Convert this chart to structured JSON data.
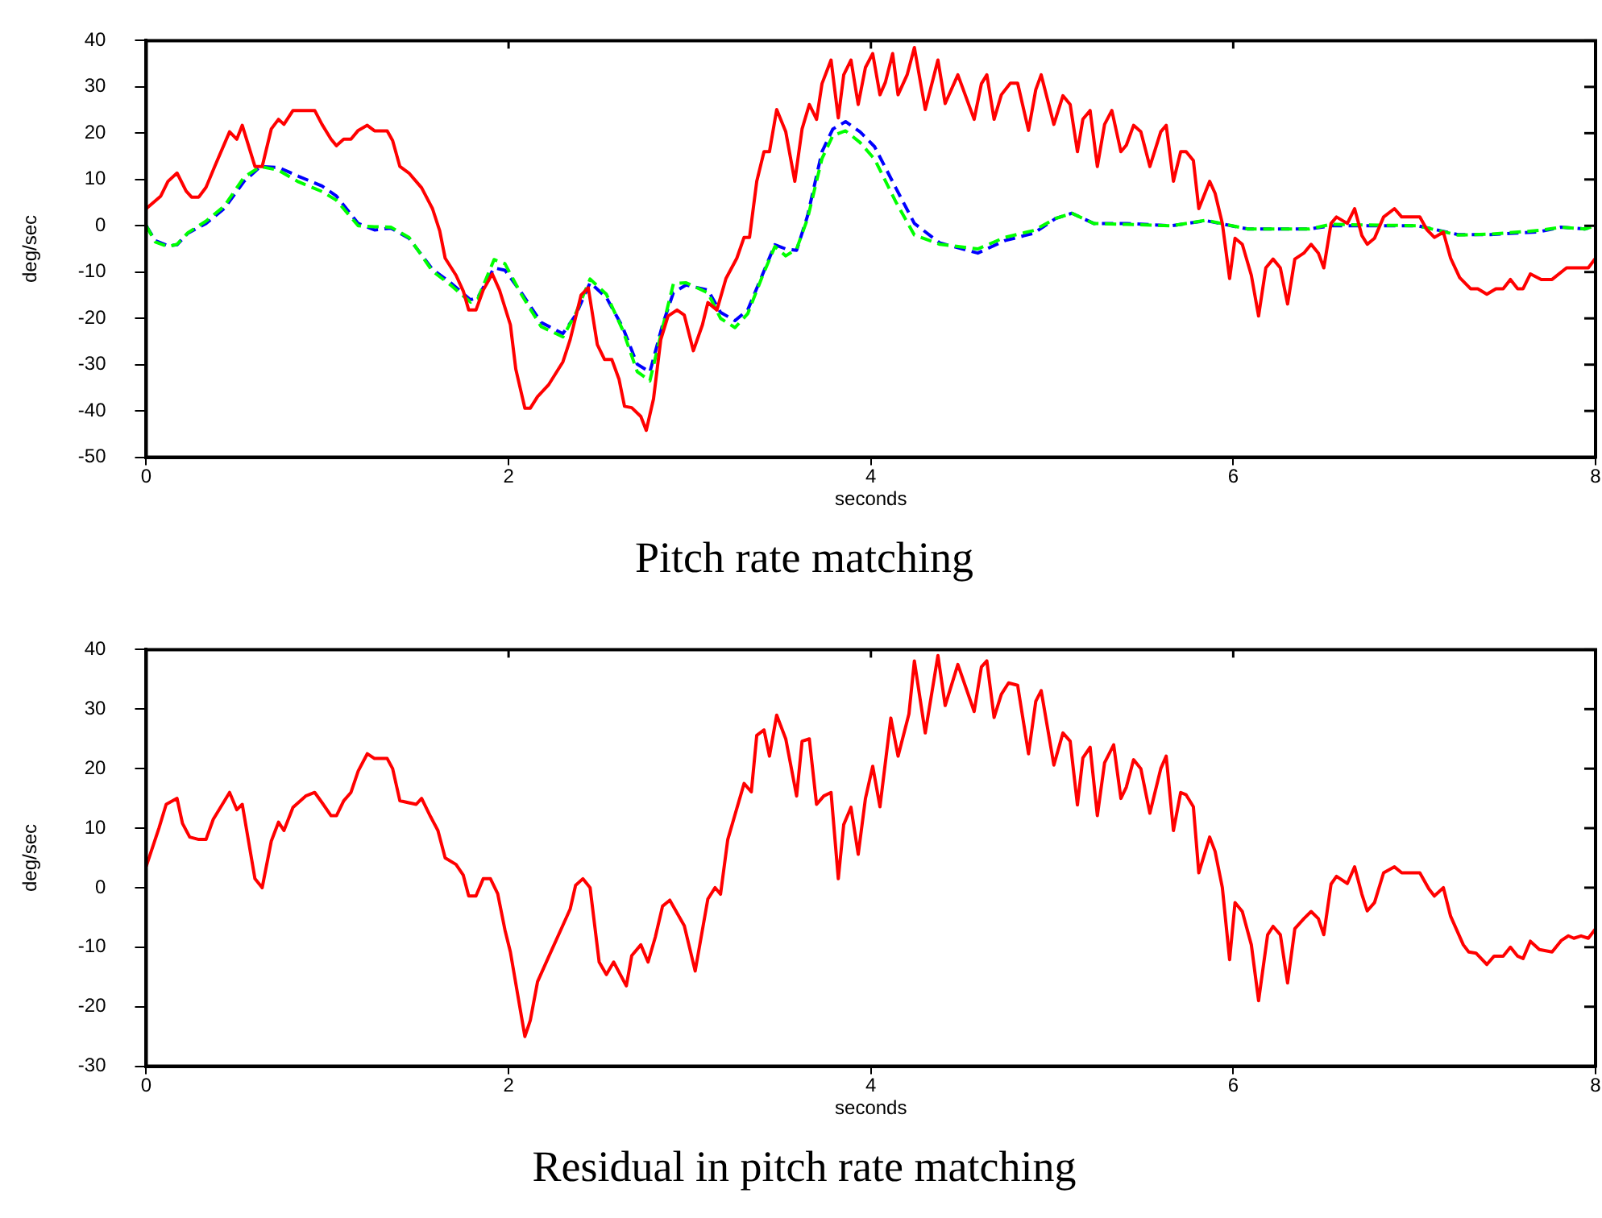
{
  "chart_data": [
    {
      "type": "line",
      "title": "Pitch rate matching",
      "xlabel": "seconds",
      "ylabel": "deg/sec",
      "xlim": [
        0,
        8
      ],
      "xticks": [
        0,
        2,
        4,
        6,
        8
      ],
      "ylim": [
        -50,
        40
      ],
      "yticks": [
        -50,
        -40,
        -30,
        -20,
        -10,
        0,
        10,
        20,
        30,
        40
      ],
      "grid": false,
      "legend": false,
      "marker": "none",
      "series": [
        {
          "color": "#ff0000",
          "line_style": "solid",
          "x": [
            0,
            0.08,
            0.12,
            0.17,
            0.22,
            0.25,
            0.29,
            0.33,
            0.38,
            0.46,
            0.5,
            0.53,
            0.6,
            0.64,
            0.69,
            0.73,
            0.76,
            0.81,
            0.93,
            0.97,
            1.02,
            1.05,
            1.09,
            1.13,
            1.17,
            1.22,
            1.26,
            1.33,
            1.36,
            1.4,
            1.45,
            1.52,
            1.58,
            1.62,
            1.65,
            1.71,
            1.75,
            1.78,
            1.82,
            1.86,
            1.91,
            1.95,
            2.01,
            2.04,
            2.09,
            2.12,
            2.16,
            2.22,
            2.3,
            2.34,
            2.4,
            2.44,
            2.49,
            2.53,
            2.57,
            2.61,
            2.64,
            2.68,
            2.73,
            2.76,
            2.8,
            2.84,
            2.88,
            2.93,
            2.97,
            3.02,
            3.07,
            3.1,
            3.15,
            3.2,
            3.26,
            3.3,
            3.33,
            3.37,
            3.41,
            3.44,
            3.48,
            3.53,
            3.58,
            3.62,
            3.66,
            3.7,
            3.73,
            3.78,
            3.82,
            3.85,
            3.89,
            3.93,
            3.97,
            4.01,
            4.05,
            4.08,
            4.12,
            4.15,
            4.2,
            4.24,
            4.3,
            4.37,
            4.41,
            4.48,
            4.57,
            4.61,
            4.64,
            4.68,
            4.72,
            4.77,
            4.81,
            4.87,
            4.91,
            4.94,
            5.01,
            5.06,
            5.1,
            5.14,
            5.17,
            5.21,
            5.25,
            5.29,
            5.33,
            5.38,
            5.41,
            5.45,
            5.49,
            5.54,
            5.6,
            5.63,
            5.67,
            5.71,
            5.74,
            5.78,
            5.81,
            5.87,
            5.9,
            5.94,
            5.98,
            6.01,
            6.05,
            6.1,
            6.14,
            6.18,
            6.22,
            6.26,
            6.3,
            6.34,
            6.39,
            6.43,
            6.47,
            6.5,
            6.54,
            6.57,
            6.63,
            6.67,
            6.71,
            6.74,
            6.78,
            6.83,
            6.89,
            6.93,
            7.03,
            7.07,
            7.11,
            7.16,
            7.2,
            7.25,
            7.31,
            7.35,
            7.4,
            7.45,
            7.49,
            7.53,
            7.57,
            7.6,
            7.64,
            7.7,
            7.76,
            7.84,
            7.96,
            8.0
          ],
          "values": [
            3.7,
            6.4,
            9.6,
            11.4,
            7.5,
            6.2,
            6.2,
            8.3,
            13,
            20.3,
            18.7,
            21.7,
            12.8,
            12.8,
            20.9,
            23,
            21.9,
            24.9,
            24.9,
            21.9,
            18.7,
            17.3,
            18.7,
            18.7,
            20.6,
            21.7,
            20.5,
            20.5,
            18.4,
            12.8,
            11.4,
            8.2,
            3.7,
            -1.1,
            -7,
            -10.7,
            -14.1,
            -18.2,
            -18.2,
            -13.9,
            -10.4,
            -13.9,
            -21.4,
            -31,
            -39.4,
            -39.4,
            -36.9,
            -34.4,
            -29.4,
            -24.6,
            -15,
            -13.4,
            -25.7,
            -28.9,
            -28.9,
            -33.2,
            -39,
            -39.3,
            -41.2,
            -44.2,
            -37.4,
            -24.6,
            -19.5,
            -18.2,
            -19.3,
            -27,
            -21.4,
            -16.6,
            -18.2,
            -11.4,
            -7,
            -2.5,
            -2.5,
            9.6,
            16,
            16,
            25.1,
            20.3,
            9.6,
            20.9,
            26.2,
            23,
            30.7,
            35.8,
            23.3,
            32.6,
            35.8,
            26.2,
            34.2,
            37.2,
            28.3,
            31,
            37.2,
            28.3,
            32.6,
            38.5,
            25.1,
            35.8,
            26.4,
            32.6,
            23,
            30.7,
            32.6,
            23,
            28.3,
            30.8,
            30.8,
            20.6,
            29.4,
            32.6,
            21.9,
            28.1,
            26.2,
            16,
            23,
            24.9,
            12.8,
            21.9,
            24.9,
            16,
            17.4,
            21.7,
            20.3,
            12.8,
            20.3,
            21.7,
            9.6,
            16,
            16,
            14.1,
            3.7,
            9.6,
            7,
            0.5,
            -11.4,
            -2.7,
            -4,
            -10.7,
            -19.5,
            -9.1,
            -7.2,
            -9.1,
            -16.9,
            -7.2,
            -5.9,
            -4,
            -5.9,
            -9.1,
            0.5,
            1.9,
            0.5,
            3.7,
            -2.1,
            -4,
            -2.7,
            1.9,
            3.7,
            1.9,
            1.9,
            -0.9,
            -2.5,
            -1.4,
            -7,
            -11.2,
            -13.6,
            -13.6,
            -14.8,
            -13.6,
            -13.6,
            -11.6,
            -13.6,
            -13.6,
            -10.4,
            -11.6,
            -11.6,
            -9.1,
            -9.1,
            -7
          ]
        },
        {
          "color": "#00ff00",
          "line_style": "dashed",
          "x": [
            0,
            0.05,
            0.12,
            0.17,
            0.23,
            0.33,
            0.43,
            0.54,
            0.63,
            0.73,
            0.84,
            0.97,
            1.05,
            1.17,
            1.26,
            1.35,
            1.45,
            1.58,
            1.68,
            1.79,
            1.83,
            1.92,
            1.98,
            2.07,
            2.18,
            2.3,
            2.37,
            2.45,
            2.54,
            2.63,
            2.71,
            2.78,
            2.85,
            2.91,
            2.98,
            3.1,
            3.17,
            3.25,
            3.32,
            3.4,
            3.47,
            3.53,
            3.59,
            3.65,
            3.73,
            3.79,
            3.86,
            3.94,
            4.02,
            4.14,
            4.24,
            4.38,
            4.59,
            4.74,
            4.9,
            5.02,
            5.11,
            5.23,
            5.41,
            5.66,
            5.85,
            6.08,
            6.42,
            6.54,
            7.02,
            7.24,
            7.42,
            7.69,
            7.81,
            7.94,
            8.0
          ],
          "values": [
            0,
            -3.5,
            -4.5,
            -4,
            -1.5,
            1,
            4.2,
            10.5,
            12.8,
            12,
            9.5,
            7.4,
            5.5,
            0,
            -0.2,
            -0.3,
            -2.5,
            -9.8,
            -12.8,
            -16.5,
            -15.8,
            -7.3,
            -8.2,
            -14.8,
            -21.8,
            -24,
            -19,
            -11.5,
            -14.8,
            -22.5,
            -31.5,
            -33.5,
            -22,
            -12.5,
            -12.3,
            -14.5,
            -20,
            -22,
            -19,
            -11,
            -4.5,
            -6.5,
            -5,
            1.5,
            14.5,
            19.5,
            20.5,
            18,
            14.4,
            5,
            -2,
            -4,
            -5,
            -2.5,
            -1,
            1.6,
            2.7,
            0.5,
            0.3,
            0,
            1.2,
            -0.7,
            -0.7,
            0.3,
            0,
            -2,
            -1.8,
            -1,
            -0.3,
            -0.7,
            0
          ]
        },
        {
          "color": "#0000ff",
          "line_style": "dashed",
          "x": [
            0,
            0.05,
            0.12,
            0.17,
            0.23,
            0.33,
            0.43,
            0.54,
            0.63,
            0.73,
            0.84,
            0.97,
            1.05,
            1.17,
            1.26,
            1.35,
            1.45,
            1.58,
            1.68,
            1.79,
            1.83,
            1.92,
            1.98,
            2.07,
            2.18,
            2.3,
            2.37,
            2.45,
            2.54,
            2.63,
            2.71,
            2.78,
            2.85,
            2.91,
            2.98,
            3.1,
            3.17,
            3.25,
            3.32,
            3.4,
            3.47,
            3.53,
            3.59,
            3.65,
            3.73,
            3.79,
            3.86,
            3.94,
            4.02,
            4.14,
            4.24,
            4.38,
            4.59,
            4.74,
            4.9,
            5.02,
            5.11,
            5.23,
            5.41,
            5.66,
            5.85,
            6.08,
            6.42,
            6.54,
            7.02,
            7.24,
            7.42,
            7.69,
            7.81,
            7.94,
            8.0
          ],
          "values": [
            0,
            -3.2,
            -4.3,
            -4.1,
            -1.6,
            0.5,
            3.7,
            9.6,
            12.8,
            12.6,
            10.7,
            8.6,
            6.4,
            0.5,
            -0.9,
            -0.5,
            -2.7,
            -9.4,
            -12.3,
            -16,
            -15.5,
            -9.1,
            -9.6,
            -14.4,
            -20.9,
            -23.3,
            -19.3,
            -12.3,
            -15.5,
            -21.9,
            -29.9,
            -31.6,
            -21.4,
            -14.4,
            -12.8,
            -13.9,
            -18.7,
            -20.5,
            -18.2,
            -10.7,
            -4.1,
            -5,
            -5.3,
            2.1,
            16,
            20.9,
            22.5,
            20.3,
            17.1,
            8,
            0.5,
            -3.7,
            -5.9,
            -3.2,
            -1.6,
            1.6,
            2.7,
            0.5,
            0.5,
            0,
            1.1,
            -0.7,
            -0.7,
            0,
            0,
            -1.9,
            -1.9,
            -1.3,
            -0.3,
            -0.7,
            0
          ]
        }
      ]
    },
    {
      "type": "line",
      "title": "Residual in pitch rate matching",
      "xlabel": "seconds",
      "ylabel": "deg/sec",
      "xlim": [
        0,
        8
      ],
      "xticks": [
        0,
        2,
        4,
        6,
        8
      ],
      "ylim": [
        -30,
        40
      ],
      "yticks": [
        -30,
        -20,
        -10,
        0,
        10,
        20,
        30,
        40
      ],
      "grid": false,
      "legend": false,
      "marker": "none",
      "series": [
        {
          "color": "#ff0000",
          "line_style": "solid",
          "x": [
            0,
            0.07,
            0.11,
            0.17,
            0.2,
            0.24,
            0.29,
            0.33,
            0.37,
            0.41,
            0.46,
            0.5,
            0.53,
            0.6,
            0.64,
            0.69,
            0.73,
            0.76,
            0.81,
            0.88,
            0.93,
            0.97,
            1.02,
            1.05,
            1.09,
            1.13,
            1.17,
            1.22,
            1.26,
            1.33,
            1.36,
            1.4,
            1.49,
            1.52,
            1.57,
            1.61,
            1.65,
            1.71,
            1.75,
            1.78,
            1.82,
            1.86,
            1.9,
            1.94,
            1.98,
            2.01,
            2.09,
            2.12,
            2.16,
            2.22,
            2.3,
            2.34,
            2.37,
            2.41,
            2.45,
            2.5,
            2.54,
            2.58,
            2.65,
            2.68,
            2.73,
            2.77,
            2.81,
            2.85,
            2.89,
            2.97,
            3.03,
            3.1,
            3.14,
            3.17,
            3.21,
            3.3,
            3.34,
            3.37,
            3.41,
            3.44,
            3.48,
            3.53,
            3.59,
            3.62,
            3.66,
            3.7,
            3.74,
            3.78,
            3.82,
            3.85,
            3.89,
            3.93,
            3.97,
            4.01,
            4.05,
            4.11,
            4.15,
            4.21,
            4.24,
            4.3,
            4.37,
            4.41,
            4.48,
            4.57,
            4.61,
            4.64,
            4.68,
            4.72,
            4.76,
            4.81,
            4.87,
            4.91,
            4.94,
            5.01,
            5.06,
            5.1,
            5.14,
            5.17,
            5.21,
            5.25,
            5.29,
            5.34,
            5.38,
            5.41,
            5.45,
            5.49,
            5.54,
            5.6,
            5.63,
            5.67,
            5.71,
            5.74,
            5.78,
            5.81,
            5.87,
            5.9,
            5.94,
            5.98,
            6.01,
            6.05,
            6.1,
            6.14,
            6.19,
            6.22,
            6.26,
            6.3,
            6.34,
            6.39,
            6.43,
            6.47,
            6.5,
            6.54,
            6.57,
            6.63,
            6.67,
            6.71,
            6.74,
            6.78,
            6.83,
            6.89,
            6.93,
            7.03,
            7.08,
            7.11,
            7.16,
            7.2,
            7.27,
            7.3,
            7.34,
            7.4,
            7.44,
            7.49,
            7.53,
            7.57,
            7.6,
            7.64,
            7.69,
            7.76,
            7.81,
            7.85,
            7.88,
            7.92,
            7.96,
            8.0
          ],
          "values": [
            3.6,
            10,
            14,
            15,
            10.8,
            8.5,
            8.1,
            8.1,
            11.5,
            13.5,
            16,
            13.1,
            14,
            1.5,
            0,
            7.8,
            11,
            9.6,
            13.5,
            15.4,
            16,
            14.3,
            12.1,
            12.1,
            14.6,
            16,
            19.6,
            22.5,
            21.7,
            21.7,
            20,
            14.6,
            14,
            15,
            11.9,
            9.6,
            5,
            3.9,
            2.1,
            -1.4,
            -1.4,
            1.5,
            1.5,
            -1,
            -7.1,
            -10.8,
            -25,
            -22.3,
            -15.8,
            -11.7,
            -6.3,
            -3.6,
            0.4,
            1.5,
            0,
            -12.5,
            -14.6,
            -12.5,
            -16.5,
            -11.4,
            -9.6,
            -12.5,
            -8.3,
            -3.1,
            -2.1,
            -6.4,
            -14,
            -1.9,
            0,
            -1.1,
            8.1,
            17.5,
            16.1,
            25.6,
            26.5,
            22.1,
            29,
            25,
            15.4,
            24.6,
            25,
            14,
            15.4,
            16,
            1.5,
            10.6,
            13.5,
            5.6,
            15,
            20.4,
            13.6,
            28.5,
            22.1,
            29.2,
            38.1,
            26,
            39,
            30.6,
            37.5,
            29.6,
            37.1,
            38.1,
            28.6,
            32.5,
            34.4,
            34,
            22.5,
            31.3,
            33.1,
            20.6,
            26,
            24.6,
            13.9,
            21.8,
            23.6,
            12.1,
            21,
            24,
            15,
            16.9,
            21.5,
            20,
            12.5,
            20,
            22.1,
            9.6,
            16,
            15.6,
            13.6,
            2.5,
            8.5,
            6.1,
            0,
            -12.1,
            -2.5,
            -4,
            -9.6,
            -19,
            -7.9,
            -6.5,
            -7.9,
            -16,
            -6.9,
            -5.2,
            -4,
            -5.2,
            -7.9,
            0.6,
            1.9,
            0.7,
            3.5,
            -1.1,
            -3.9,
            -2.5,
            2.5,
            3.5,
            2.5,
            2.5,
            -0.2,
            -1.4,
            0,
            -4.8,
            -9.6,
            -10.8,
            -11,
            -12.9,
            -11.5,
            -11.5,
            -10,
            -11.5,
            -11.9,
            -9,
            -10.4,
            -10.8,
            -8.9,
            -8.1,
            -8.5,
            -8.1,
            -8.5,
            -6.9
          ]
        }
      ]
    }
  ]
}
